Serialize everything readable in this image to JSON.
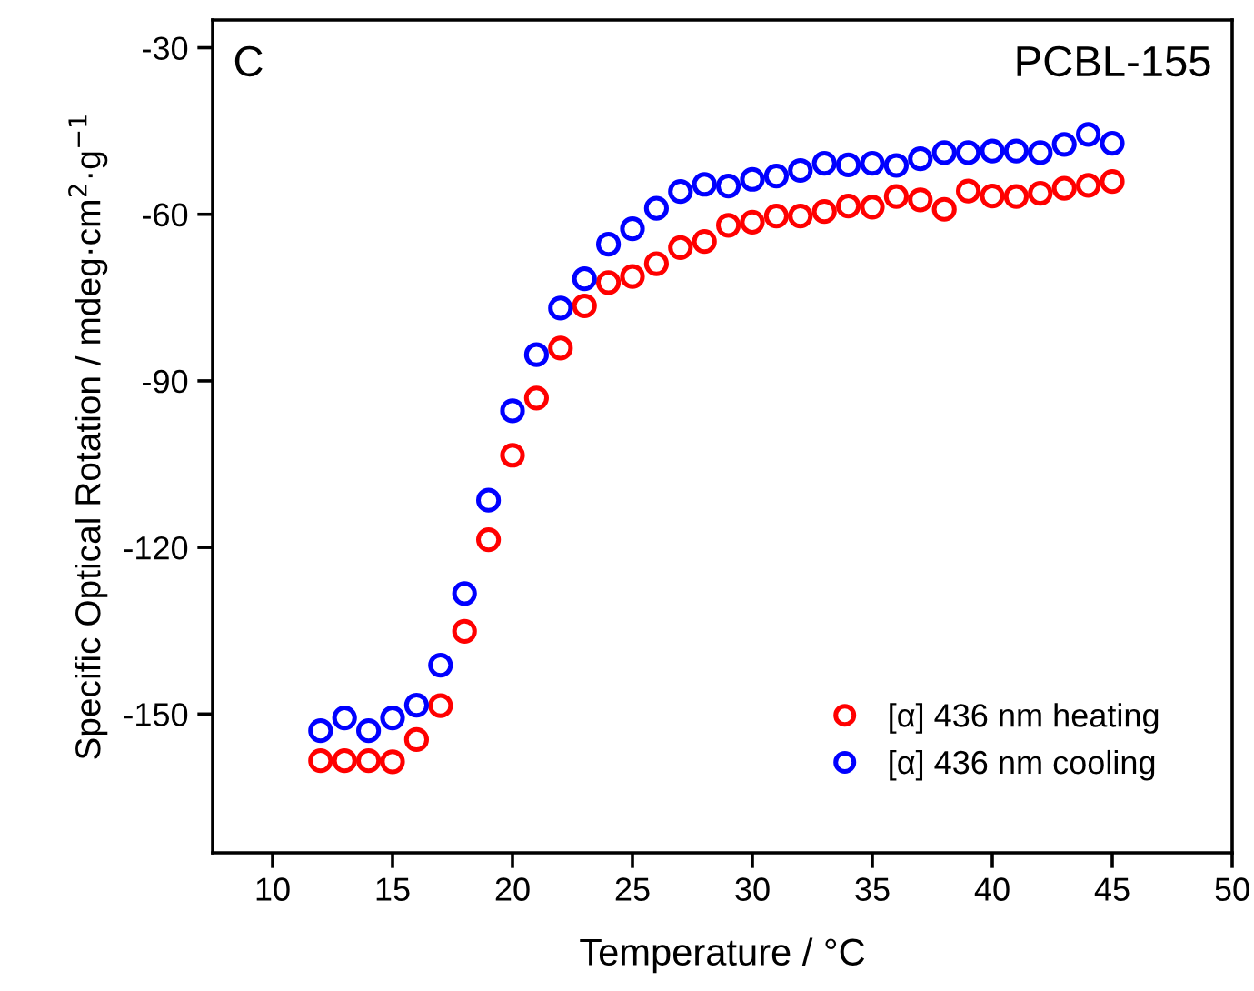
{
  "chart_data": {
    "type": "scatter",
    "xlabel": "Temperature / °C",
    "ylabel": "Specific Optical Rotation / mdeg·cm$^{2}$·g$^{−1}$",
    "annotations": [
      "C",
      "PCBL-155"
    ],
    "x": [
      12,
      13,
      14,
      15,
      16,
      17,
      18,
      19,
      20,
      21,
      22,
      23,
      24,
      25,
      26,
      27,
      28,
      29,
      30,
      31,
      32,
      33,
      34,
      35,
      36,
      37,
      38,
      39,
      40,
      41,
      42,
      43,
      44,
      45
    ],
    "series": [
      {
        "name": "[α] 436 nm heating",
        "color": "#ff0000",
        "values": [
          -158.4,
          -158.4,
          -158.4,
          -158.6,
          -154.6,
          -148.5,
          -135.1,
          -118.6,
          -103.4,
          -93.1,
          -84.1,
          -76.5,
          -72.3,
          -71.2,
          -68.9,
          -66.0,
          -64.9,
          -62.0,
          -61.4,
          -60.3,
          -60.3,
          -59.5,
          -58.5,
          -58.7,
          -56.8,
          -57.4,
          -59.1,
          -55.8,
          -56.7,
          -56.8,
          -56.2,
          -55.3,
          -54.8,
          -54.1
        ]
      },
      {
        "name": "[α] 436 nm cooling",
        "color": "#0000ff",
        "values": [
          -153.0,
          -150.7,
          -153.0,
          -150.7,
          -148.4,
          -141.2,
          -128.3,
          -111.5,
          -95.4,
          -85.3,
          -76.9,
          -71.6,
          -65.4,
          -62.6,
          -58.9,
          -55.9,
          -54.6,
          -54.9,
          -53.7,
          -53.1,
          -52.1,
          -50.8,
          -51.1,
          -50.8,
          -51.2,
          -50.0,
          -48.9,
          -48.9,
          -48.6,
          -48.6,
          -48.9,
          -47.4,
          -45.6,
          -47.2
        ]
      }
    ],
    "xlim": [
      7.5,
      50
    ],
    "xticks": [
      10,
      15,
      20,
      25,
      30,
      35,
      40,
      45,
      50
    ],
    "ylim": [
      -175,
      -25
    ],
    "yticks": [
      -30,
      -60,
      -90,
      -120,
      -150
    ],
    "grid": false,
    "legend": "bottom right",
    "marker": "circle"
  }
}
